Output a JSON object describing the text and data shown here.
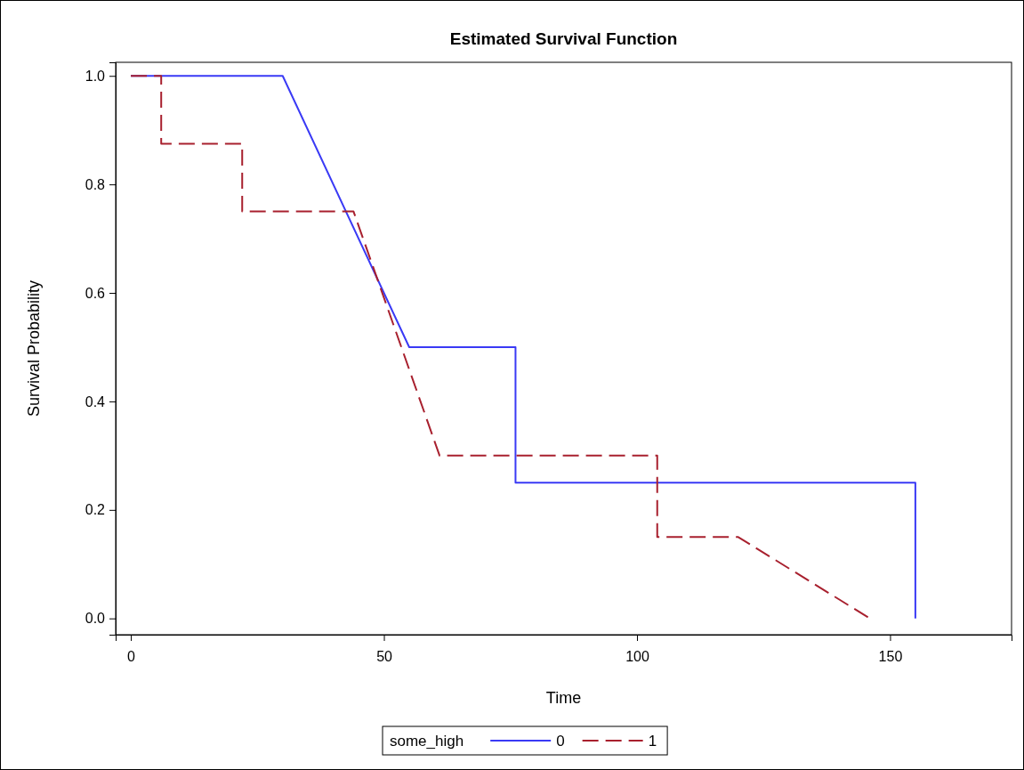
{
  "chart_data": {
    "type": "line",
    "title": "Estimated Survival Function",
    "xlabel": "Time",
    "ylabel": "Survival Probability",
    "legend_title": "some_high",
    "legend": "bottom",
    "grid": false,
    "marker": "none",
    "xlim": [
      -3,
      174
    ],
    "xticks": [
      0,
      50,
      100,
      150
    ],
    "ylim": [
      -0.03,
      1.025
    ],
    "yticks": [
      {
        "value": 0,
        "label": "0.0"
      },
      {
        "value": 0.2,
        "label": "0.2"
      },
      {
        "value": 0.4,
        "label": "0.4"
      },
      {
        "value": 0.6,
        "label": "0.6"
      },
      {
        "value": 0.8,
        "label": "0.8"
      },
      {
        "value": 1,
        "label": "1.0"
      }
    ],
    "series": [
      {
        "name": "0",
        "color": "#3a3af5",
        "line_style": "solid",
        "x": [
          0,
          30,
          55,
          76,
          76,
          155,
          155
        ],
        "values": [
          1,
          1,
          0.5,
          0.5,
          0.25,
          0.25,
          0
        ]
      },
      {
        "name": "1",
        "color": "#a8202e",
        "line_style": "dashed",
        "x": [
          0,
          6,
          6,
          22,
          22,
          44,
          61,
          104,
          104,
          120,
          146
        ],
        "values": [
          1,
          1,
          0.875,
          0.875,
          0.75,
          0.75,
          0.3,
          0.3,
          0.15,
          0.15,
          0
        ]
      }
    ]
  }
}
